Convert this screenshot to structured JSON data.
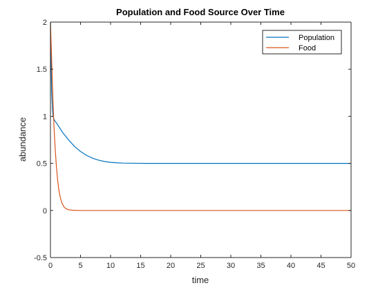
{
  "chart_data": {
    "type": "line",
    "title": "Population and Food Source Over Time",
    "xlabel": "time",
    "ylabel": "abundance",
    "xlim": [
      0,
      50
    ],
    "ylim": [
      -0.5,
      2
    ],
    "xticks": [
      0,
      5,
      10,
      15,
      20,
      25,
      30,
      35,
      40,
      45,
      50
    ],
    "yticks": [
      -0.5,
      0,
      0.5,
      1,
      1.5,
      2
    ],
    "xtick_labels": [
      "0",
      "5",
      "10",
      "15",
      "20",
      "25",
      "30",
      "35",
      "40",
      "45",
      "50"
    ],
    "ytick_labels": [
      "-0.5",
      "0",
      "0.5",
      "1",
      "1.5",
      "2"
    ],
    "grid": false,
    "legend_position": "top-right",
    "series": [
      {
        "name": "Population",
        "color": "#0072BD",
        "x": [
          0,
          0.1,
          0.2,
          0.35,
          0.5,
          0.75,
          1,
          1.5,
          2,
          2.5,
          3,
          4,
          5,
          6,
          7,
          8,
          9,
          10,
          11,
          12,
          14,
          16,
          20,
          25,
          30,
          35,
          40,
          45,
          50
        ],
        "y": [
          2.0,
          1.6,
          1.25,
          1.05,
          0.98,
          0.95,
          0.93,
          0.88,
          0.83,
          0.79,
          0.75,
          0.68,
          0.626,
          0.585,
          0.555,
          0.534,
          0.52,
          0.511,
          0.506,
          0.503,
          0.501,
          0.5,
          0.5,
          0.5,
          0.5,
          0.5,
          0.5,
          0.5,
          0.5
        ]
      },
      {
        "name": "Food",
        "color": "#D95319",
        "x": [
          0,
          0.2,
          0.4,
          0.6,
          0.8,
          1.0,
          1.2,
          1.4,
          1.6,
          1.8,
          2.0,
          2.3,
          2.6,
          3.0,
          3.5,
          4,
          5,
          6,
          8,
          10,
          20,
          30,
          40,
          50
        ],
        "y": [
          2.0,
          1.6,
          1.2,
          0.88,
          0.64,
          0.46,
          0.32,
          0.22,
          0.15,
          0.1,
          0.065,
          0.035,
          0.018,
          0.008,
          0.003,
          0.001,
          0.0,
          0.0,
          0.0,
          0.0,
          0.0,
          0.0,
          0.0,
          0.0
        ]
      }
    ]
  }
}
